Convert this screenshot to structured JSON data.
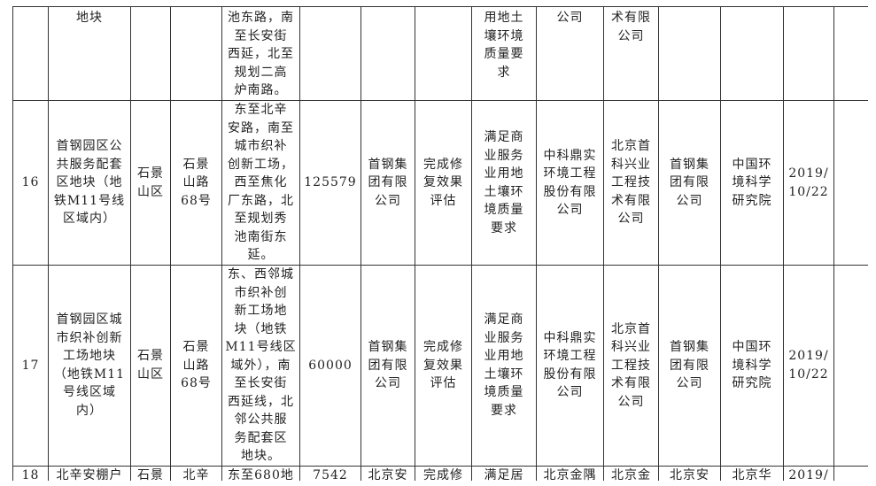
{
  "table": {
    "rows": [
      {
        "cells": [
          "",
          "地块",
          "",
          "",
          "池东路，南\n至长安街\n西延，北至\n规划二高\n炉南路。",
          "",
          "",
          "",
          "用地土\n壤环境\n质量要\n求",
          "公司",
          "术有限\n公司",
          "",
          "",
          "",
          ""
        ]
      },
      {
        "cells": [
          "16",
          "首钢园区公\n共服务配套\n区地块（地\n铁M11号线\n区域内）",
          "石景\n山区",
          "石景\n山路\n68号",
          "东至北辛\n安路，南至\n城市织补\n创新工场，\n西至焦化\n厂东路，北\n至规划秀\n池南街东\n延。",
          "125579",
          "首钢集\n团有限\n公司",
          "完成修\n复效果\n评估",
          "满足商\n业服务\n业用地\n土壤环\n境质量\n要求",
          "中科鼎实\n环境工程\n股份有限\n公司",
          "北京首\n科兴业\n工程技\n术有限\n公司",
          "首钢集\n团有限\n公司",
          "中国环\n境科学\n研究院",
          "2019/\n10/22",
          ""
        ]
      },
      {
        "cells": [
          "17",
          "首钢园区城\n市织补创新\n工场地块\n（地铁M11\n号线区域\n内）",
          "石景\n山区",
          "石景\n山路\n68号",
          "东、西邻城\n市织补创\n新工场地\n块（地铁\nM11号线区\n域外），南\n至长安街\n西延线，北\n邻公共服\n务配套区\n地块。",
          "60000",
          "首钢集\n团有限\n公司",
          "完成修\n复效果\n评估",
          "满足商\n业服务\n业用地\n土壤环\n境质量\n要求",
          "中科鼎实\n环境工程\n股份有限\n公司",
          "北京首\n科兴业\n工程技\n术有限\n公司",
          "首钢集\n团有限\n公司",
          "中国环\n境科学\n研究院",
          "2019/\n10/22",
          ""
        ]
      },
      {
        "cells": [
          "18",
          "北辛安棚户",
          "石景",
          "北辛",
          "东至680地",
          "7542",
          "北京安",
          "完成修",
          "满足居",
          "北京金隅",
          "北京金",
          "北京安",
          "北京华",
          "2019/",
          ""
        ]
      }
    ]
  }
}
